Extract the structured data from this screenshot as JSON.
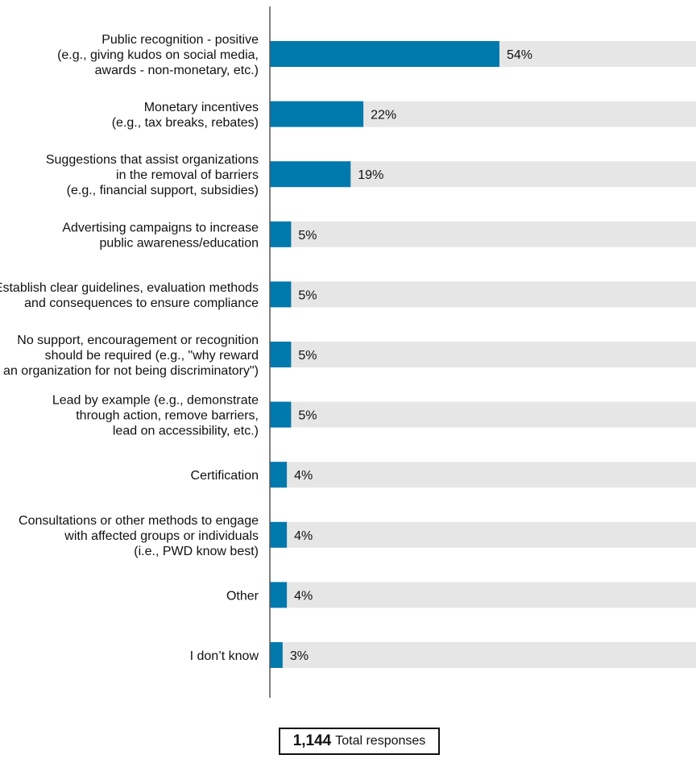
{
  "chart_data": {
    "type": "bar",
    "orientation": "horizontal",
    "categories": [
      [
        "Public recognition - positive",
        "(e.g., giving kudos on social media,",
        "awards - non-monetary, etc.)"
      ],
      [
        "Monetary incentives",
        "(e.g., tax breaks, rebates)"
      ],
      [
        "Suggestions that assist organizations",
        "in the removal of barriers",
        "(e.g., financial support, subsidies)"
      ],
      [
        "Advertising campaigns to increase",
        "public awareness/education"
      ],
      [
        "Establish clear guidelines, evaluation methods",
        "and consequences to ensure compliance"
      ],
      [
        "No support, encouragement or recognition",
        "should be required (e.g., \"why reward",
        "an organization for not being discriminatory\")"
      ],
      [
        "Lead by example (e.g., demonstrate",
        "through action, remove barriers,",
        "lead on accessibility, etc.)"
      ],
      [
        "Certification"
      ],
      [
        "Consultations or other methods to engage",
        "with affected groups or individuals",
        "(i.e., PWD know best)"
      ],
      [
        "Other"
      ],
      [
        "I don’t know"
      ]
    ],
    "values": [
      54,
      22,
      19,
      5,
      5,
      5,
      5,
      4,
      4,
      4,
      3
    ],
    "value_labels": [
      "54%",
      "22%",
      "19%",
      "5%",
      "5%",
      "5%",
      "5%",
      "4%",
      "4%",
      "4%",
      "3%"
    ],
    "xlim": [
      0,
      100
    ],
    "unit": "%",
    "colors": {
      "bar": "#0079ad",
      "track": "#e6e6e6",
      "axis": "#555555"
    }
  },
  "footer": {
    "total_count": "1,144",
    "total_label": "Total responses"
  }
}
